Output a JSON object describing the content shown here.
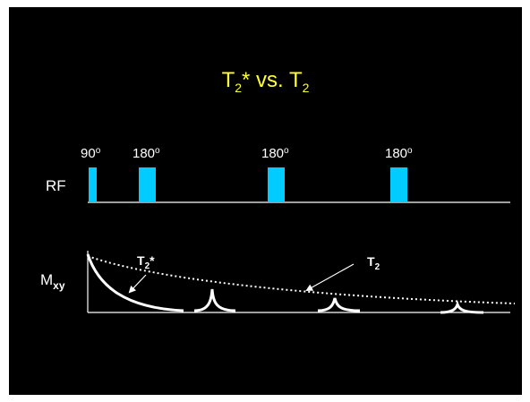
{
  "title": {
    "base": "T",
    "sub": "2",
    "mid": "* vs. T",
    "sub2": "2"
  },
  "rf": {
    "label": "RF",
    "pulses": [
      {
        "value": "90",
        "sup": "o"
      },
      {
        "value": "180",
        "sup": "o"
      },
      {
        "value": "180",
        "sup": "o"
      },
      {
        "value": "180",
        "sup": "o"
      }
    ]
  },
  "signal": {
    "axis_label": {
      "base": "M",
      "sub": "xy"
    },
    "t2star_label": {
      "base": "T",
      "sub": "2",
      "sup": "*"
    },
    "t2_label": {
      "base": "T",
      "sub": "2"
    }
  },
  "colors": {
    "background": "#000000",
    "title": "#ffff33",
    "pulse": "#00ccff",
    "text": "#ffffff"
  }
}
